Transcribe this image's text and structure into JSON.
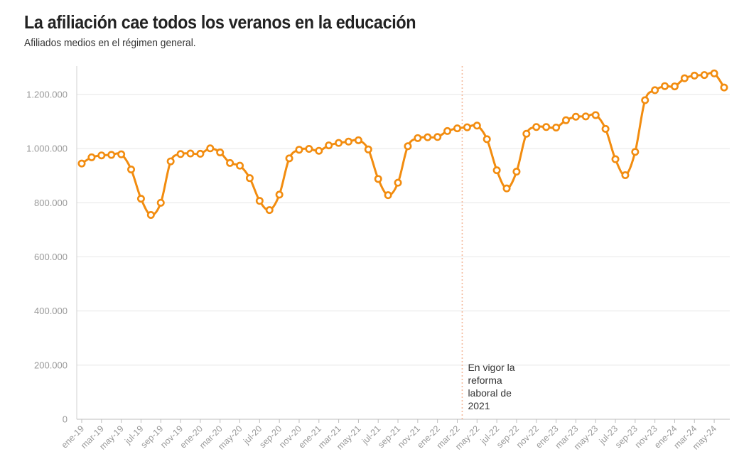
{
  "header": {
    "title": "La afiliación cae todos los veranos en la educación",
    "subtitle": "Afiliados medios en el régimen general."
  },
  "chart_data": {
    "type": "line",
    "title": "La afiliación cae todos los veranos en la educación",
    "subtitle": "Afiliados medios en el régimen general.",
    "xlabel": "",
    "ylabel": "",
    "ylim": [
      0,
      1300000
    ],
    "y_ticks": [
      0,
      200000,
      400000,
      600000,
      800000,
      1000000,
      1200000
    ],
    "y_tick_labels": [
      "0",
      "200.000",
      "400.000",
      "600.000",
      "800.000",
      "1.000.000",
      "1.200.000"
    ],
    "x_tick_labels": [
      "ene-19",
      "mar-19",
      "may-19",
      "jul-19",
      "sep-19",
      "nov-19",
      "ene-20",
      "mar-20",
      "may-20",
      "jul-20",
      "sep-20",
      "nov-20",
      "ene-21",
      "mar-21",
      "may-21",
      "jul-21",
      "sep-21",
      "nov-21",
      "ene-22",
      "mar-22",
      "may-22",
      "jul-22",
      "sep-22",
      "nov-22",
      "ene-23",
      "mar-23",
      "may-23",
      "jul-23",
      "sep-23",
      "nov-23",
      "ene-24",
      "mar-24",
      "may-24"
    ],
    "grid": true,
    "line_color": "#f28c0f",
    "marker_fill": "#ffffff",
    "annotation": {
      "x": "abr-22",
      "line_color": "#f4b89a",
      "text_lines": [
        "En vigor la",
        "reforma",
        "laboral de",
        "2021"
      ]
    },
    "series": [
      {
        "x": [
          "ene-19",
          "feb-19",
          "mar-19",
          "abr-19",
          "may-19",
          "jun-19",
          "jul-19",
          "ago-19",
          "sep-19",
          "oct-19",
          "nov-19",
          "dic-19",
          "ene-20",
          "feb-20",
          "mar-20",
          "abr-20",
          "may-20",
          "jun-20",
          "jul-20",
          "ago-20",
          "sep-20",
          "oct-20",
          "nov-20",
          "dic-20",
          "ene-21",
          "feb-21",
          "mar-21",
          "abr-21",
          "may-21",
          "jun-21",
          "jul-21",
          "ago-21",
          "sep-21",
          "oct-21",
          "nov-21",
          "dic-21",
          "ene-22",
          "feb-22",
          "mar-22",
          "abr-22",
          "may-22",
          "jun-22",
          "jul-22",
          "ago-22",
          "sep-22",
          "oct-22",
          "nov-22",
          "dic-22",
          "ene-23",
          "feb-23",
          "mar-23",
          "abr-23",
          "may-23",
          "jun-23",
          "jul-23",
          "ago-23",
          "sep-23",
          "oct-23",
          "nov-23",
          "dic-23",
          "ene-24",
          "feb-24",
          "mar-24",
          "abr-24",
          "may-24",
          "jun-24"
        ],
        "values": [
          945000,
          968000,
          975000,
          977000,
          979000,
          923000,
          815000,
          755000,
          800000,
          953000,
          980000,
          982000,
          981000,
          1001000,
          986000,
          947000,
          937000,
          891000,
          807000,
          773000,
          830000,
          964000,
          996000,
          999000,
          992000,
          1012000,
          1021000,
          1026000,
          1031000,
          997000,
          888000,
          828000,
          874000,
          1009000,
          1039000,
          1042000,
          1043000,
          1065000,
          1075000,
          1079000,
          1085000,
          1035000,
          920000,
          853000,
          915000,
          1055000,
          1080000,
          1080000,
          1078000,
          1105000,
          1118000,
          1119000,
          1124000,
          1073000,
          961000,
          902000,
          988000,
          1179000,
          1216000,
          1231000,
          1230000,
          1260000,
          1270000,
          1272000,
          1278000,
          1226000
        ]
      }
    ]
  }
}
